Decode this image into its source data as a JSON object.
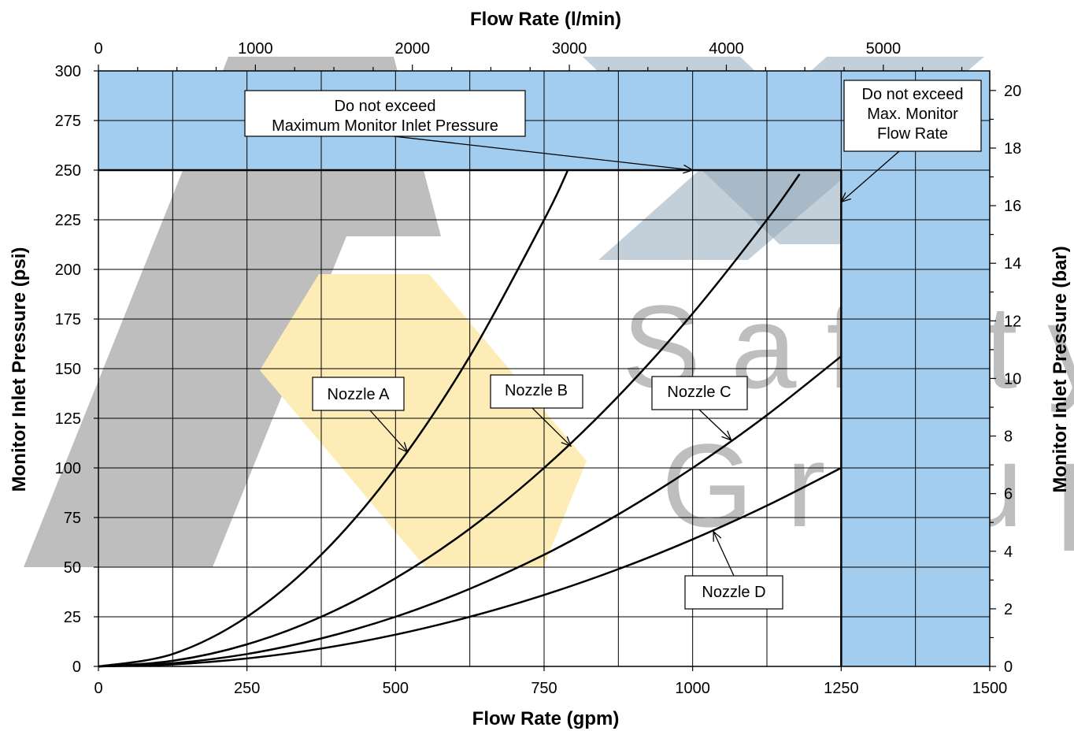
{
  "chart_data": {
    "type": "line",
    "xlabel": "Flow Rate (gpm)",
    "x2label": "Flow Rate (l/min)",
    "ylabel": "Monitor Inlet Pressure (psi)",
    "y2label": "Monitor Inlet Pressure (bar)",
    "xlim": [
      0,
      1500
    ],
    "ylim": [
      0,
      300
    ],
    "x2lim": [
      0,
      5678
    ],
    "y2lim": [
      0,
      20.68
    ],
    "x_ticks": [
      0,
      250,
      500,
      750,
      1000,
      1250,
      1500
    ],
    "y_ticks": [
      0,
      25,
      50,
      75,
      100,
      125,
      150,
      175,
      200,
      225,
      250,
      275,
      300
    ],
    "x2_ticks": [
      0,
      1000,
      2000,
      3000,
      4000,
      5000
    ],
    "y2_ticks": [
      0,
      2,
      4,
      6,
      8,
      10,
      12,
      14,
      16,
      18,
      20
    ],
    "x_ticklabels": [
      "0",
      "250",
      "500",
      "750",
      "1000",
      "1250",
      "1500"
    ],
    "y_ticklabels": [
      "0",
      "25",
      "50",
      "75",
      "100",
      "125",
      "150",
      "175",
      "200",
      "225",
      "250",
      "275",
      "300"
    ],
    "x2_ticklabels": [
      "0",
      "1000",
      "2000",
      "3000",
      "4000",
      "5000"
    ],
    "y2_ticklabels": [
      "0",
      "2",
      "4",
      "6",
      "8",
      "10",
      "12",
      "14",
      "16",
      "18",
      "20"
    ],
    "grid": true,
    "max_pressure_psi": 250,
    "max_flow_gpm": 1250,
    "limit_color": "#a3cdee",
    "series": [
      {
        "name": "Nozzle A",
        "x": [
          0,
          125,
          250,
          375,
          500,
          625,
          750,
          790
        ],
        "y": [
          0,
          6.25,
          25,
          56.25,
          100,
          156.25,
          225,
          250
        ]
      },
      {
        "name": "Nozzle B",
        "x": [
          0,
          125,
          250,
          375,
          500,
          625,
          750,
          875,
          1000,
          1125,
          1180
        ],
        "y": [
          0,
          2.8,
          11.1,
          25,
          44.4,
          69.4,
          100,
          136.1,
          177.8,
          225,
          248
        ]
      },
      {
        "name": "Nozzle C",
        "x": [
          0,
          125,
          250,
          375,
          500,
          625,
          750,
          875,
          1000,
          1125,
          1250
        ],
        "y": [
          0,
          1.6,
          6.25,
          14.1,
          25,
          39.1,
          56.25,
          76.6,
          100,
          126.6,
          156.25
        ]
      },
      {
        "name": "Nozzle D",
        "x": [
          0,
          125,
          250,
          375,
          500,
          625,
          750,
          875,
          1000,
          1125,
          1250
        ],
        "y": [
          0,
          1,
          4,
          9,
          16,
          25,
          36,
          49,
          64,
          81,
          100
        ]
      }
    ],
    "annotations": [
      {
        "id": "max-pressure-note",
        "lines": [
          "Do not exceed",
          "Maximum Monitor Inlet Pressure"
        ],
        "arrow_to": [
          1000,
          250
        ]
      },
      {
        "id": "max-flow-note",
        "lines": [
          "Do not exceed",
          "Max. Monitor",
          "Flow Rate"
        ],
        "arrow_to": [
          1250,
          234
        ]
      },
      {
        "id": "nozzle-a-label",
        "lines": [
          "Nozzle A"
        ],
        "arrow_to": [
          520,
          108
        ]
      },
      {
        "id": "nozzle-b-label",
        "lines": [
          "Nozzle B"
        ],
        "arrow_to": [
          795,
          111
        ]
      },
      {
        "id": "nozzle-c-label",
        "lines": [
          "Nozzle C"
        ],
        "arrow_to": [
          1065,
          114
        ]
      },
      {
        "id": "nozzle-d-label",
        "lines": [
          "Nozzle D"
        ],
        "arrow_to": [
          1035,
          68
        ]
      }
    ]
  },
  "watermark": {
    "text_lines": [
      "Safety",
      "Group"
    ],
    "gray": "#b3b3b3",
    "yellow": "#fde9a8"
  }
}
